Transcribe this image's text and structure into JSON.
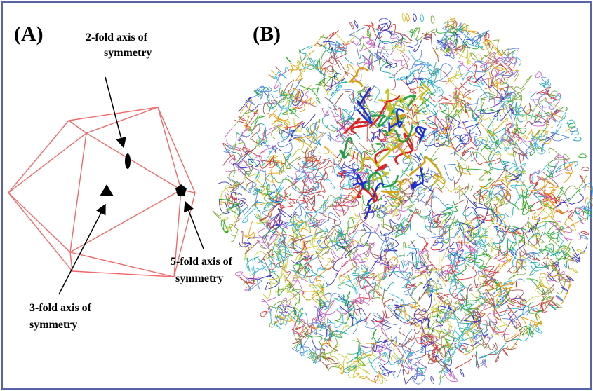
{
  "panel_a": {
    "label": "(A)",
    "two_fold": [
      "2-fold axis of",
      "symmetry"
    ],
    "three_fold": [
      "3-fold axis of",
      "symmetry"
    ],
    "five_fold": [
      "5-fold axis of",
      "symmetry"
    ]
  },
  "panel_b": {
    "label": "(B)"
  }
}
